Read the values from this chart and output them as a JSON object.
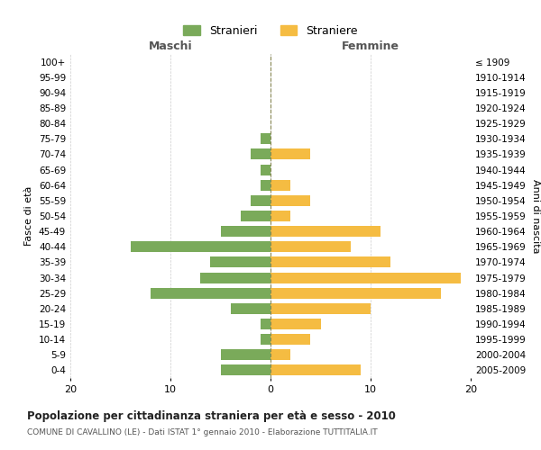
{
  "age_groups": [
    "100+",
    "95-99",
    "90-94",
    "85-89",
    "80-84",
    "75-79",
    "70-74",
    "65-69",
    "60-64",
    "55-59",
    "50-54",
    "45-49",
    "40-44",
    "35-39",
    "30-34",
    "25-29",
    "20-24",
    "15-19",
    "10-14",
    "5-9",
    "0-4"
  ],
  "birth_years": [
    "≤ 1909",
    "1910-1914",
    "1915-1919",
    "1920-1924",
    "1925-1929",
    "1930-1934",
    "1935-1939",
    "1940-1944",
    "1945-1949",
    "1950-1954",
    "1955-1959",
    "1960-1964",
    "1965-1969",
    "1970-1974",
    "1975-1979",
    "1980-1984",
    "1985-1989",
    "1990-1994",
    "1995-1999",
    "2000-2004",
    "2005-2009"
  ],
  "maschi": [
    0,
    0,
    0,
    0,
    0,
    1,
    2,
    1,
    1,
    2,
    3,
    5,
    14,
    6,
    7,
    12,
    4,
    1,
    1,
    5,
    5
  ],
  "femmine": [
    0,
    0,
    0,
    0,
    0,
    0,
    4,
    0,
    2,
    4,
    2,
    11,
    8,
    12,
    19,
    17,
    10,
    5,
    4,
    2,
    9
  ],
  "color_maschi": "#7aaa5a",
  "color_femmine": "#f5bc42",
  "title": "Popolazione per cittadinanza straniera per età e sesso - 2010",
  "subtitle": "COMUNE DI CAVALLINO (LE) - Dati ISTAT 1° gennaio 2010 - Elaborazione TUTTITALIA.IT",
  "ylabel_left": "Fasce di età",
  "ylabel_right": "Anni di nascita",
  "xlabel_left": "Maschi",
  "xlabel_right": "Femmine",
  "legend_stranieri": "Stranieri",
  "legend_straniere": "Straniere",
  "xlim": 20,
  "background_color": "#ffffff",
  "grid_color": "#cccccc"
}
